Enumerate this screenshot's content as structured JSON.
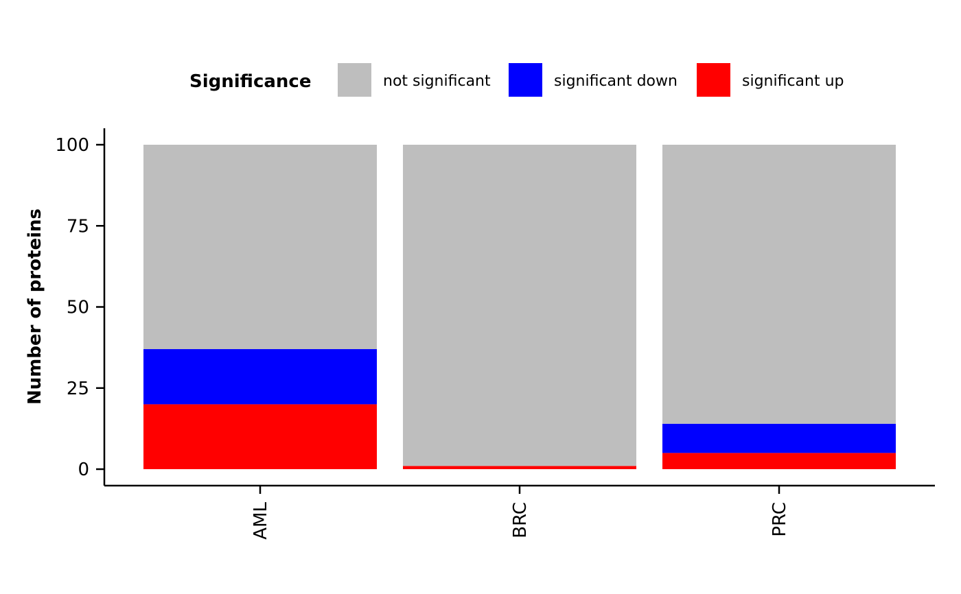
{
  "chart_data": {
    "type": "bar",
    "stacked": true,
    "ylabel": "Number of proteins",
    "xlabel": "",
    "ylim": [
      0,
      100
    ],
    "yticks": [
      0,
      25,
      50,
      75,
      100
    ],
    "categories": [
      "AML",
      "BRC",
      "PRC"
    ],
    "legend": {
      "title": "Significance",
      "position": "top"
    },
    "series": [
      {
        "name": "significant up",
        "color": "#FF0000",
        "values": [
          20,
          1,
          5
        ]
      },
      {
        "name": "significant down",
        "color": "#0000FF",
        "values": [
          17,
          0,
          9
        ]
      },
      {
        "name": "not significant",
        "color": "#BEBEBE",
        "values": [
          63,
          99,
          86
        ]
      }
    ],
    "legend_order": [
      "not significant",
      "significant down",
      "significant up"
    ],
    "grid": false
  }
}
